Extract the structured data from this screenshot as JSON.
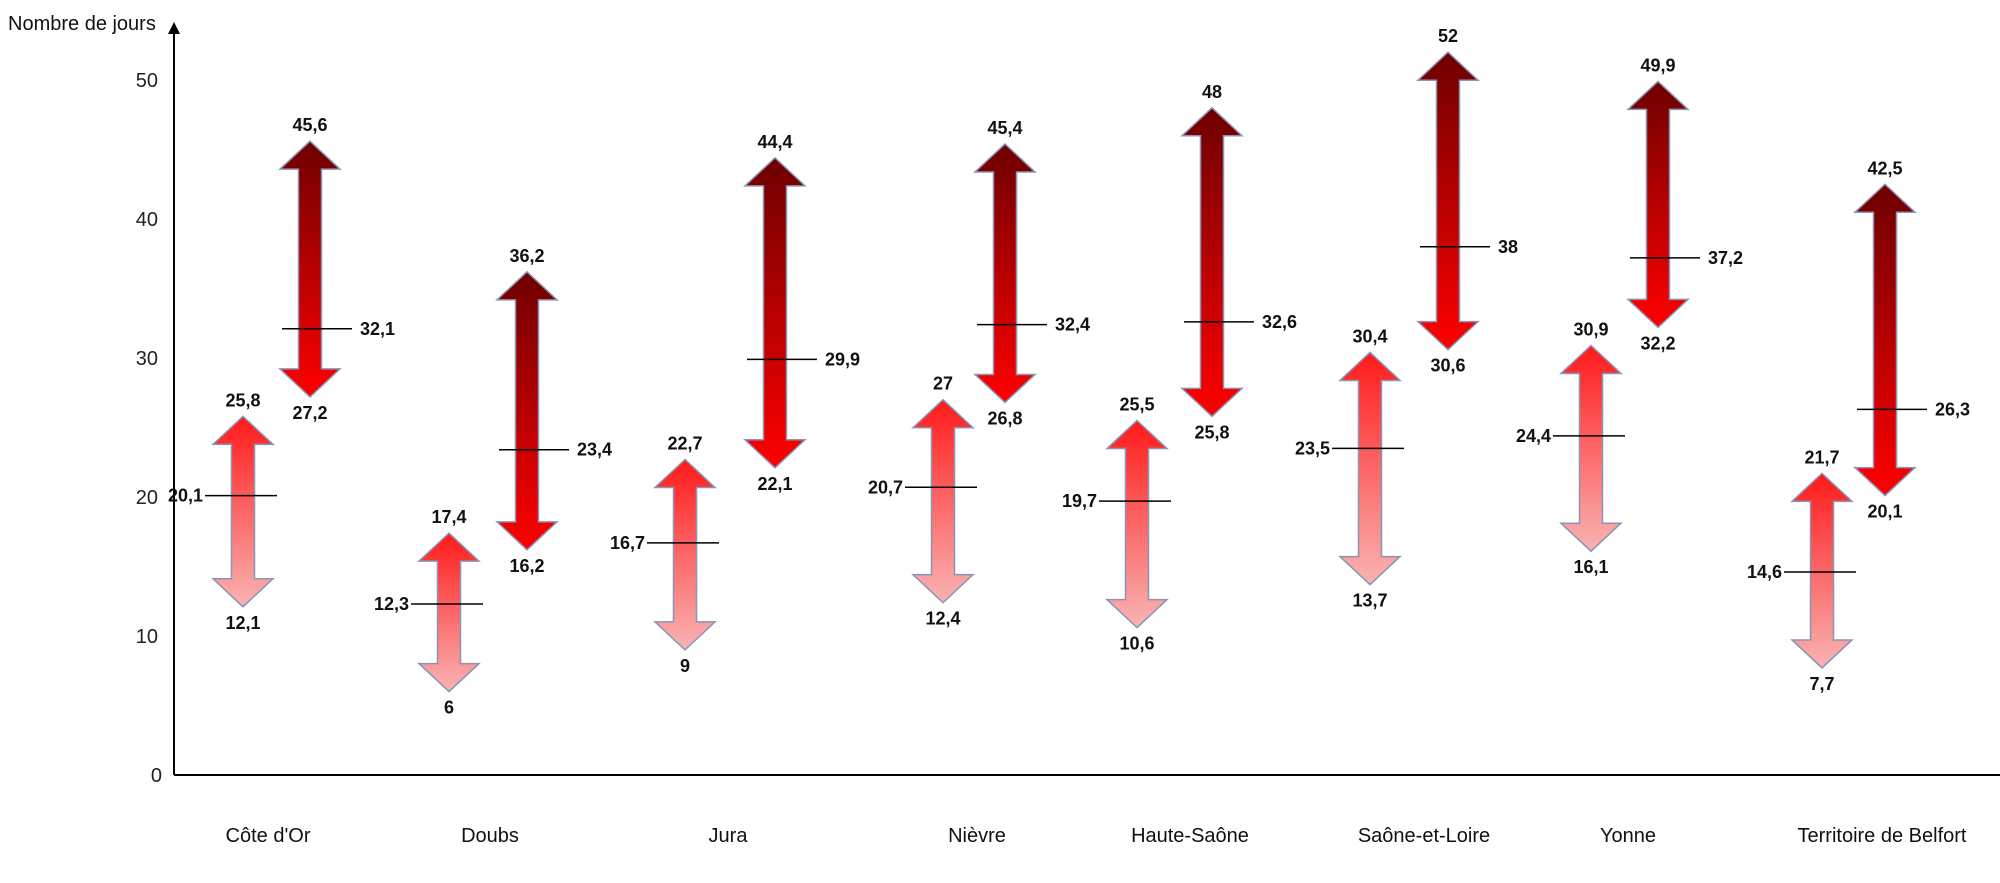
{
  "chart_data": {
    "type": "range-arrows",
    "ylabel": "Nombre de jours",
    "yticks": [
      0,
      10,
      20,
      30,
      40,
      50
    ],
    "ylim": [
      0,
      53
    ],
    "categories": [
      "Côte d'Or",
      "Doubs",
      "Jura",
      "Nièvre",
      "Haute-Saône",
      "Saône-et-Loire",
      "Yonne",
      "Territoire de Belfort"
    ],
    "series": [
      {
        "style": "light",
        "colors": [
          "#ff1a1a",
          "#f9b3b3"
        ],
        "items": [
          {
            "min": 12.1,
            "mid": 20.1,
            "max": 25.8
          },
          {
            "min": 6,
            "mid": 12.3,
            "max": 17.4
          },
          {
            "min": 9,
            "mid": 16.7,
            "max": 22.7
          },
          {
            "min": 12.4,
            "mid": 20.7,
            "max": 27
          },
          {
            "min": 10.6,
            "mid": 19.7,
            "max": 25.5
          },
          {
            "min": 13.7,
            "mid": 23.5,
            "max": 30.4
          },
          {
            "min": 16.1,
            "mid": 24.4,
            "max": 30.9
          },
          {
            "min": 7.7,
            "mid": 14.6,
            "max": 21.7
          }
        ]
      },
      {
        "style": "dark",
        "colors": [
          "#6e0000",
          "#ff0000"
        ],
        "items": [
          {
            "min": 27.2,
            "mid": 32.1,
            "max": 45.6
          },
          {
            "min": 16.2,
            "mid": 23.4,
            "max": 36.2
          },
          {
            "min": 22.1,
            "mid": 29.9,
            "max": 44.4
          },
          {
            "min": 26.8,
            "mid": 32.4,
            "max": 45.4
          },
          {
            "min": 25.8,
            "mid": 32.6,
            "max": 48
          },
          {
            "min": 30.6,
            "mid": 38,
            "max": 52
          },
          {
            "min": 32.2,
            "mid": 37.2,
            "max": 49.9
          },
          {
            "min": 20.1,
            "mid": 26.3,
            "max": 42.5
          }
        ]
      }
    ],
    "labels": {
      "min": [
        "12,1",
        "6",
        "9",
        "12,4",
        "10,6",
        "13,7",
        "16,1",
        "7,7"
      ],
      "mid": [
        "20,1",
        "12,3",
        "16,7",
        "20,7",
        "19,7",
        "23,5",
        "24,4",
        "14,6"
      ],
      "max": [
        "25,8",
        "17,4",
        "22,7",
        "27",
        "25,5",
        "30,4",
        "30,9",
        "21,7"
      ],
      "dark_min": [
        "27,2",
        "16,2",
        "22,1",
        "26,8",
        "25,8",
        "30,6",
        "32,2",
        "20,1"
      ],
      "dark_mid": [
        "32,1",
        "23,4",
        "29,9",
        "32,4",
        "32,6",
        "38",
        "37,2",
        "26,3"
      ],
      "dark_max": [
        "45,6",
        "36,2",
        "44,4",
        "45,4",
        "48",
        "52",
        "49,9",
        "42,5"
      ]
    }
  }
}
